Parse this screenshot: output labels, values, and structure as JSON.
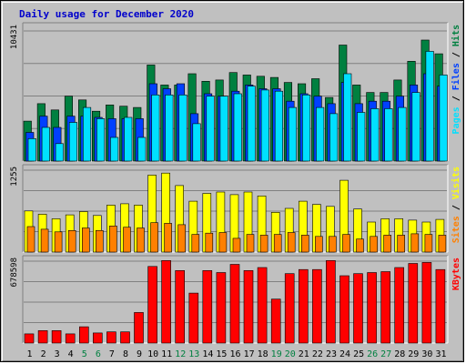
{
  "chart_data": [
    {
      "type": "bar",
      "title": "Daily usage for December 2020",
      "categories": [
        "1",
        "2",
        "3",
        "4",
        "5",
        "6",
        "7",
        "8",
        "9",
        "10",
        "11",
        "12",
        "13",
        "14",
        "15",
        "16",
        "17",
        "18",
        "19",
        "20",
        "21",
        "22",
        "23",
        "24",
        "25",
        "26",
        "27",
        "28",
        "29",
        "30",
        "31"
      ],
      "weekend_categories": [
        "5",
        "6",
        "12",
        "13",
        "19",
        "20",
        "26",
        "27"
      ],
      "max_label": "10431",
      "ylim": [
        0,
        10431
      ],
      "series": [
        {
          "name": "Hits",
          "color": "#008040",
          "values": [
            3200,
            4600,
            4100,
            5200,
            4900,
            4000,
            4500,
            4400,
            4300,
            7700,
            6100,
            6100,
            7000,
            6400,
            6500,
            7100,
            6900,
            6800,
            6700,
            6300,
            6200,
            6600,
            5100,
            9300,
            6100,
            5500,
            5500,
            6500,
            8000,
            9700,
            8600
          ]
        },
        {
          "name": "Files",
          "color": "#0040ff",
          "values": [
            2300,
            3600,
            2700,
            3600,
            3600,
            3500,
            3400,
            3400,
            3400,
            6200,
            5800,
            6200,
            3800,
            5400,
            5200,
            5600,
            6100,
            5800,
            5800,
            4800,
            5400,
            5200,
            4600,
            6300,
            4600,
            4800,
            4800,
            5200,
            6100,
            7000,
            6000
          ]
        },
        {
          "name": "Pages",
          "color": "#00e0ff",
          "values": [
            1800,
            2700,
            1400,
            3100,
            4300,
            3400,
            1900,
            3500,
            1900,
            5300,
            5300,
            5300,
            3000,
            5200,
            5200,
            5400,
            6000,
            5700,
            5600,
            4300,
            5300,
            4300,
            3800,
            7000,
            3900,
            4200,
            4200,
            4300,
            5500,
            8800,
            6900
          ]
        }
      ]
    },
    {
      "type": "bar",
      "categories": [
        "1",
        "2",
        "3",
        "4",
        "5",
        "6",
        "7",
        "8",
        "9",
        "10",
        "11",
        "12",
        "13",
        "14",
        "15",
        "16",
        "17",
        "18",
        "19",
        "20",
        "21",
        "22",
        "23",
        "24",
        "25",
        "26",
        "27",
        "28",
        "29",
        "30",
        "31"
      ],
      "max_label": "1255",
      "ylim": [
        0,
        1255
      ],
      "series": [
        {
          "name": "Visits",
          "color": "#ffff00",
          "values": [
            630,
            580,
            510,
            570,
            620,
            560,
            720,
            740,
            720,
            1180,
            1210,
            1020,
            780,
            900,
            920,
            880,
            920,
            860,
            610,
            670,
            780,
            730,
            700,
            1100,
            660,
            460,
            510,
            510,
            490,
            460,
            500
          ]
        },
        {
          "name": "Sites",
          "color": "#ff8000",
          "values": [
            390,
            350,
            310,
            330,
            370,
            330,
            400,
            380,
            370,
            450,
            440,
            420,
            270,
            290,
            300,
            210,
            270,
            260,
            270,
            300,
            260,
            240,
            240,
            270,
            200,
            240,
            260,
            260,
            280,
            270,
            260
          ]
        }
      ]
    },
    {
      "type": "bar",
      "categories": [
        "1",
        "2",
        "3",
        "4",
        "5",
        "6",
        "7",
        "8",
        "9",
        "10",
        "11",
        "12",
        "13",
        "14",
        "15",
        "16",
        "17",
        "18",
        "19",
        "20",
        "21",
        "22",
        "23",
        "24",
        "25",
        "26",
        "27",
        "28",
        "29",
        "30",
        "31"
      ],
      "max_label": "678598",
      "ylim": [
        0,
        678598
      ],
      "series": [
        {
          "name": "KBytes",
          "color": "#ff0000",
          "values": [
            76000,
            103000,
            103000,
            76000,
            135000,
            84000,
            93000,
            93000,
            253000,
            635000,
            684000,
            601000,
            414000,
            601000,
            584000,
            652000,
            601000,
            626000,
            364000,
            575000,
            609000,
            609000,
            684000,
            558000,
            575000,
            584000,
            592000,
            626000,
            660000,
            668000,
            609000
          ]
        }
      ]
    }
  ]
}
